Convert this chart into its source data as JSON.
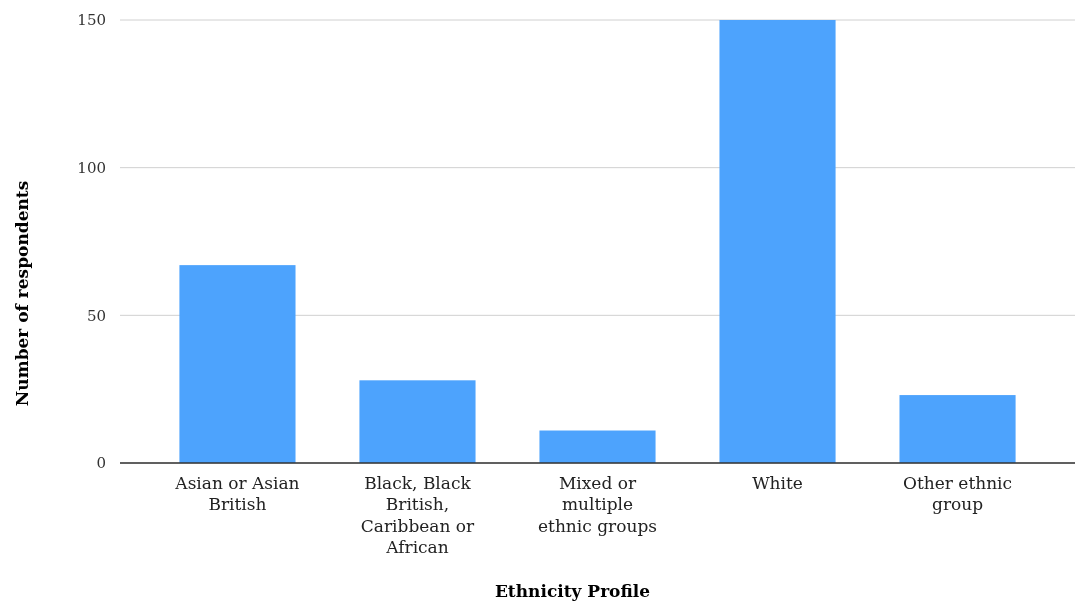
{
  "chart_data": {
    "type": "bar",
    "xlabel": "Ethnicity Profile",
    "ylabel": "Number of respondents",
    "categories": [
      "Asian or Asian British",
      "Black, Black British, Caribbean or African",
      "Mixed or multiple ethnic groups",
      "White",
      "Other ethnic group"
    ],
    "values": [
      67,
      28,
      11,
      150,
      23
    ],
    "color": "#4da3fd",
    "ylim": [
      0,
      150
    ],
    "yticks": [
      0,
      50,
      100,
      150
    ],
    "grid": "y"
  }
}
